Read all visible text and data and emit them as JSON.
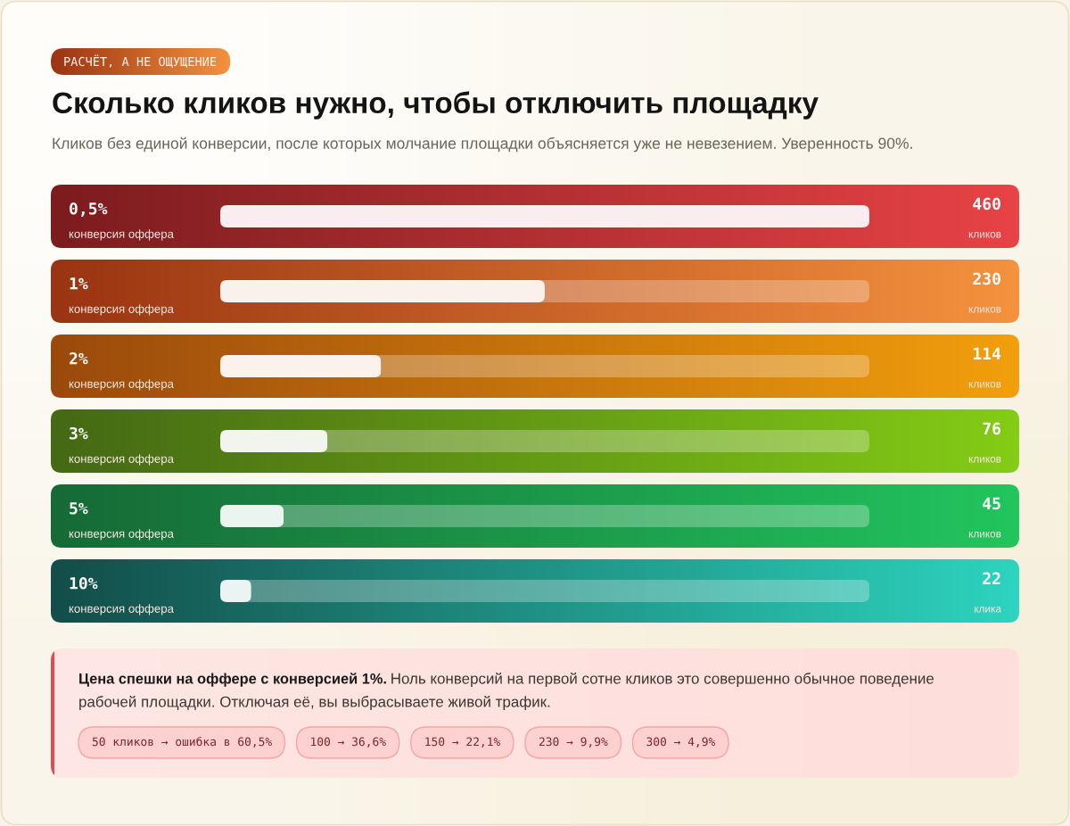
{
  "chart_data": {
    "type": "bar",
    "orientation": "horizontal",
    "title": "Сколько кликов нужно, чтобы отключить площадку",
    "subtitle": "Кликов без единой конверсии, после которых молчание площадки объясняется уже не невезением. Уверенность 90%.",
    "categories": [
      "0,5%\nконверсия оффера",
      "1%\nконверсия оффера",
      "2%\nконверсия оффера",
      "3%\nконверсия оффера",
      "5%\nконверсия оффера",
      "10%\nконверсия оффера"
    ],
    "values": [
      460,
      230,
      114,
      76,
      45,
      22
    ],
    "data_labels": true,
    "colors": [
      "#faedef",
      "#fbf1ec",
      "#fbf2ec",
      "#f1f5ed",
      "#ebf5ef",
      "#ecf4f3"
    ],
    "tick_labels": "y",
    "annotations": [
      "РАСЧЁТ, А НЕ ОЩУЩЕНИЕ",
      "Цена спешки на оффере с конверсией 1%.",
      "Ноль конверсий на первой сотне кликов это совершенно обычное поведение\nрабочей площадки. Отключая её, вы выбрасываете живой трафик.",
      "кликов",
      "кликов",
      "кликов",
      "кликов",
      "кликов",
      "клика",
      "50 кликов → ошибка в 60,5%",
      "100 → 36,6%",
      "150 → 22,1%",
      "230 → 9,9%",
      "300 → 4,9%"
    ]
  }
}
